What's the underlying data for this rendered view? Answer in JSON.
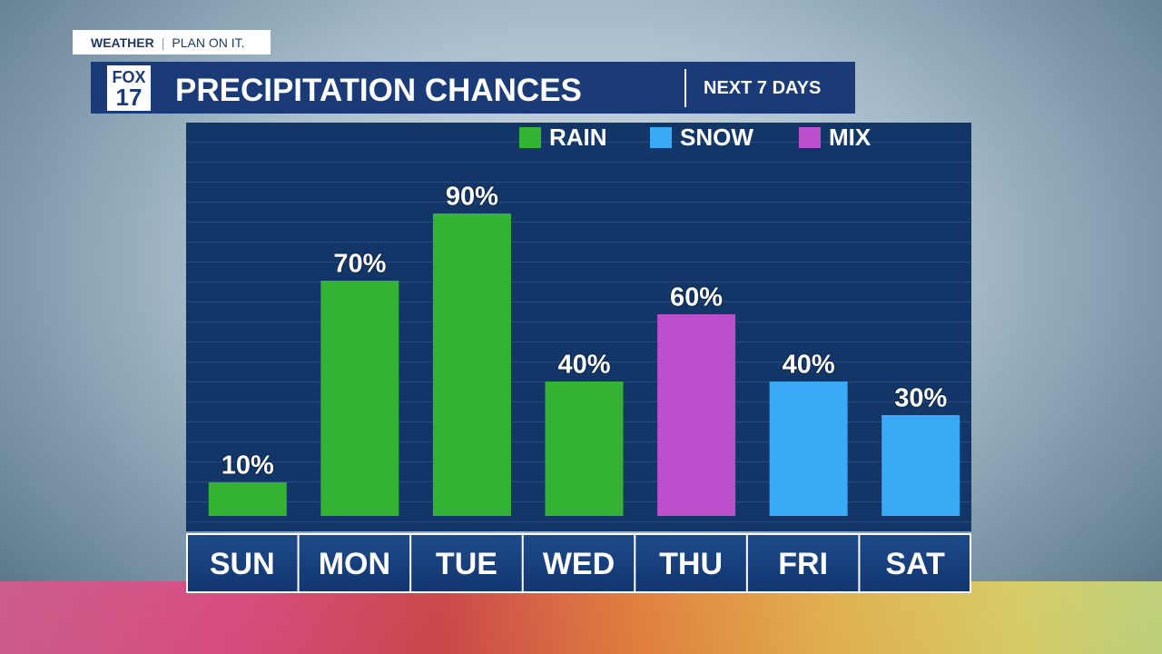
{
  "branding": {
    "tag": "WEATHER",
    "slogan": "PLAN ON IT.",
    "logo_top": "FOX",
    "logo_bottom": "17"
  },
  "chart_data": {
    "type": "bar",
    "title": "PRECIPITATION CHANCES",
    "subtitle": "NEXT 7 DAYS",
    "categories": [
      "SUN",
      "MON",
      "TUE",
      "WED",
      "THU",
      "FRI",
      "SAT"
    ],
    "series": [
      {
        "name": "RAIN",
        "color": "#34b233",
        "values": [
          10,
          70,
          90,
          40,
          null,
          null,
          null
        ],
        "value_labels": [
          "10%",
          "70%",
          "90%",
          "40%",
          null,
          null,
          null
        ]
      },
      {
        "name": "SNOW",
        "color": "#3aaaf6",
        "values": [
          null,
          null,
          null,
          null,
          null,
          40,
          30
        ],
        "value_labels": [
          null,
          null,
          null,
          null,
          null,
          "40%",
          "30%"
        ]
      },
      {
        "name": "MIX",
        "color": "#bb4fcc",
        "values": [
          null,
          null,
          null,
          null,
          60,
          null,
          null
        ],
        "value_labels": [
          null,
          null,
          null,
          null,
          "60%",
          null,
          null
        ]
      }
    ],
    "ylim": [
      0,
      100
    ]
  }
}
